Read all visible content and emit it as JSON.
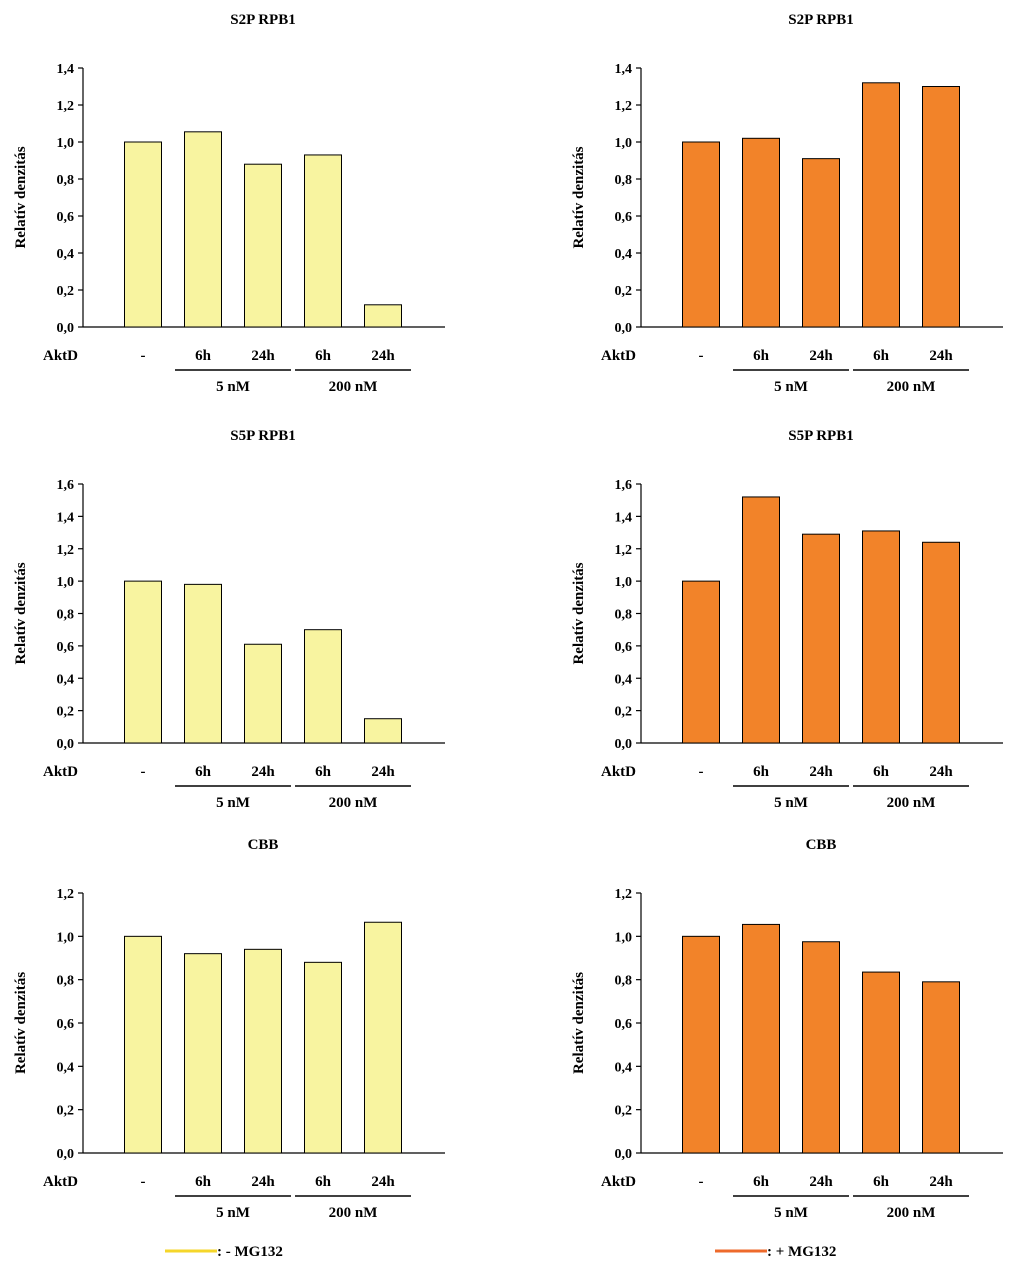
{
  "chart_data": [
    {
      "type": "bar",
      "title": "S2P RPB1",
      "ylabel": "Relatív denzitás",
      "row_label": "AktD",
      "categories": [
        "-",
        "6h",
        "24h",
        "6h",
        "24h"
      ],
      "groups": [
        {
          "label": "5 nM",
          "from": 1,
          "to": 2
        },
        {
          "label": "200 nM",
          "from": 3,
          "to": 4
        }
      ],
      "condition": "- MG132",
      "values": [
        1.0,
        1.055,
        0.88,
        0.93,
        0.12
      ],
      "ylim": [
        0,
        1.4
      ],
      "yticks": [
        "0,0",
        "0,2",
        "0,4",
        "0,6",
        "0,8",
        "1,0",
        "1,2",
        "1,4"
      ],
      "color": "#f8f4a0"
    },
    {
      "type": "bar",
      "title": "S2P RPB1",
      "ylabel": "Relatív denzitás",
      "row_label": "AktD",
      "categories": [
        "-",
        "6h",
        "24h",
        "6h",
        "24h"
      ],
      "groups": [
        {
          "label": "5 nM",
          "from": 1,
          "to": 2
        },
        {
          "label": "200 nM",
          "from": 3,
          "to": 4
        }
      ],
      "condition": "+ MG132",
      "values": [
        1.0,
        1.02,
        0.91,
        1.32,
        1.3
      ],
      "ylim": [
        0,
        1.4
      ],
      "yticks": [
        "0,0",
        "0,2",
        "0,4",
        "0,6",
        "0,8",
        "1,0",
        "1,2",
        "1,4"
      ],
      "color": "#f28329"
    },
    {
      "type": "bar",
      "title": "S5P RPB1",
      "ylabel": "Relatív denzitás",
      "row_label": "AktD",
      "categories": [
        "-",
        "6h",
        "24h",
        "6h",
        "24h"
      ],
      "groups": [
        {
          "label": "5 nM",
          "from": 1,
          "to": 2
        },
        {
          "label": "200 nM",
          "from": 3,
          "to": 4
        }
      ],
      "condition": "- MG132",
      "values": [
        1.0,
        0.98,
        0.61,
        0.7,
        0.15
      ],
      "ylim": [
        0,
        1.6
      ],
      "yticks": [
        "0,0",
        "0,2",
        "0,4",
        "0,6",
        "0,8",
        "1,0",
        "1,2",
        "1,4",
        "1,6"
      ],
      "color": "#f8f4a0"
    },
    {
      "type": "bar",
      "title": "S5P RPB1",
      "ylabel": "Relatív denzitás",
      "row_label": "AktD",
      "categories": [
        "-",
        "6h",
        "24h",
        "6h",
        "24h"
      ],
      "groups": [
        {
          "label": "5 nM",
          "from": 1,
          "to": 2
        },
        {
          "label": "200 nM",
          "from": 3,
          "to": 4
        }
      ],
      "condition": "+ MG132",
      "values": [
        1.0,
        1.52,
        1.29,
        1.31,
        1.24
      ],
      "ylim": [
        0,
        1.6
      ],
      "yticks": [
        "0,0",
        "0,2",
        "0,4",
        "0,6",
        "0,8",
        "1,0",
        "1,2",
        "1,4",
        "1,6"
      ],
      "color": "#f28329"
    },
    {
      "type": "bar",
      "title": "CBB",
      "ylabel": "Relatív denzitás",
      "row_label": "AktD",
      "categories": [
        "-",
        "6h",
        "24h",
        "6h",
        "24h"
      ],
      "groups": [
        {
          "label": "5 nM",
          "from": 1,
          "to": 2
        },
        {
          "label": "200 nM",
          "from": 3,
          "to": 4
        }
      ],
      "condition": "- MG132",
      "values": [
        1.0,
        0.92,
        0.94,
        0.88,
        1.065
      ],
      "ylim": [
        0,
        1.2
      ],
      "yticks": [
        "0,0",
        "0,2",
        "0,4",
        "0,6",
        "0,8",
        "1,0",
        "1,2"
      ],
      "color": "#f8f4a0"
    },
    {
      "type": "bar",
      "title": "CBB",
      "ylabel": "Relatív denzitás",
      "row_label": "AktD",
      "categories": [
        "-",
        "6h",
        "24h",
        "6h",
        "24h"
      ],
      "groups": [
        {
          "label": "5 nM",
          "from": 1,
          "to": 2
        },
        {
          "label": "200 nM",
          "from": 3,
          "to": 4
        }
      ],
      "condition": "+ MG132",
      "values": [
        1.0,
        1.055,
        0.975,
        0.835,
        0.79
      ],
      "ylim": [
        0,
        1.2
      ],
      "yticks": [
        "0,0",
        "0,2",
        "0,4",
        "0,6",
        "0,8",
        "1,0",
        "1,2"
      ],
      "color": "#f28329"
    }
  ],
  "legend": [
    {
      "label": ": - MG132",
      "color": "#f5d62a"
    },
    {
      "label": ": + MG132",
      "color": "#ee6a2b"
    }
  ]
}
